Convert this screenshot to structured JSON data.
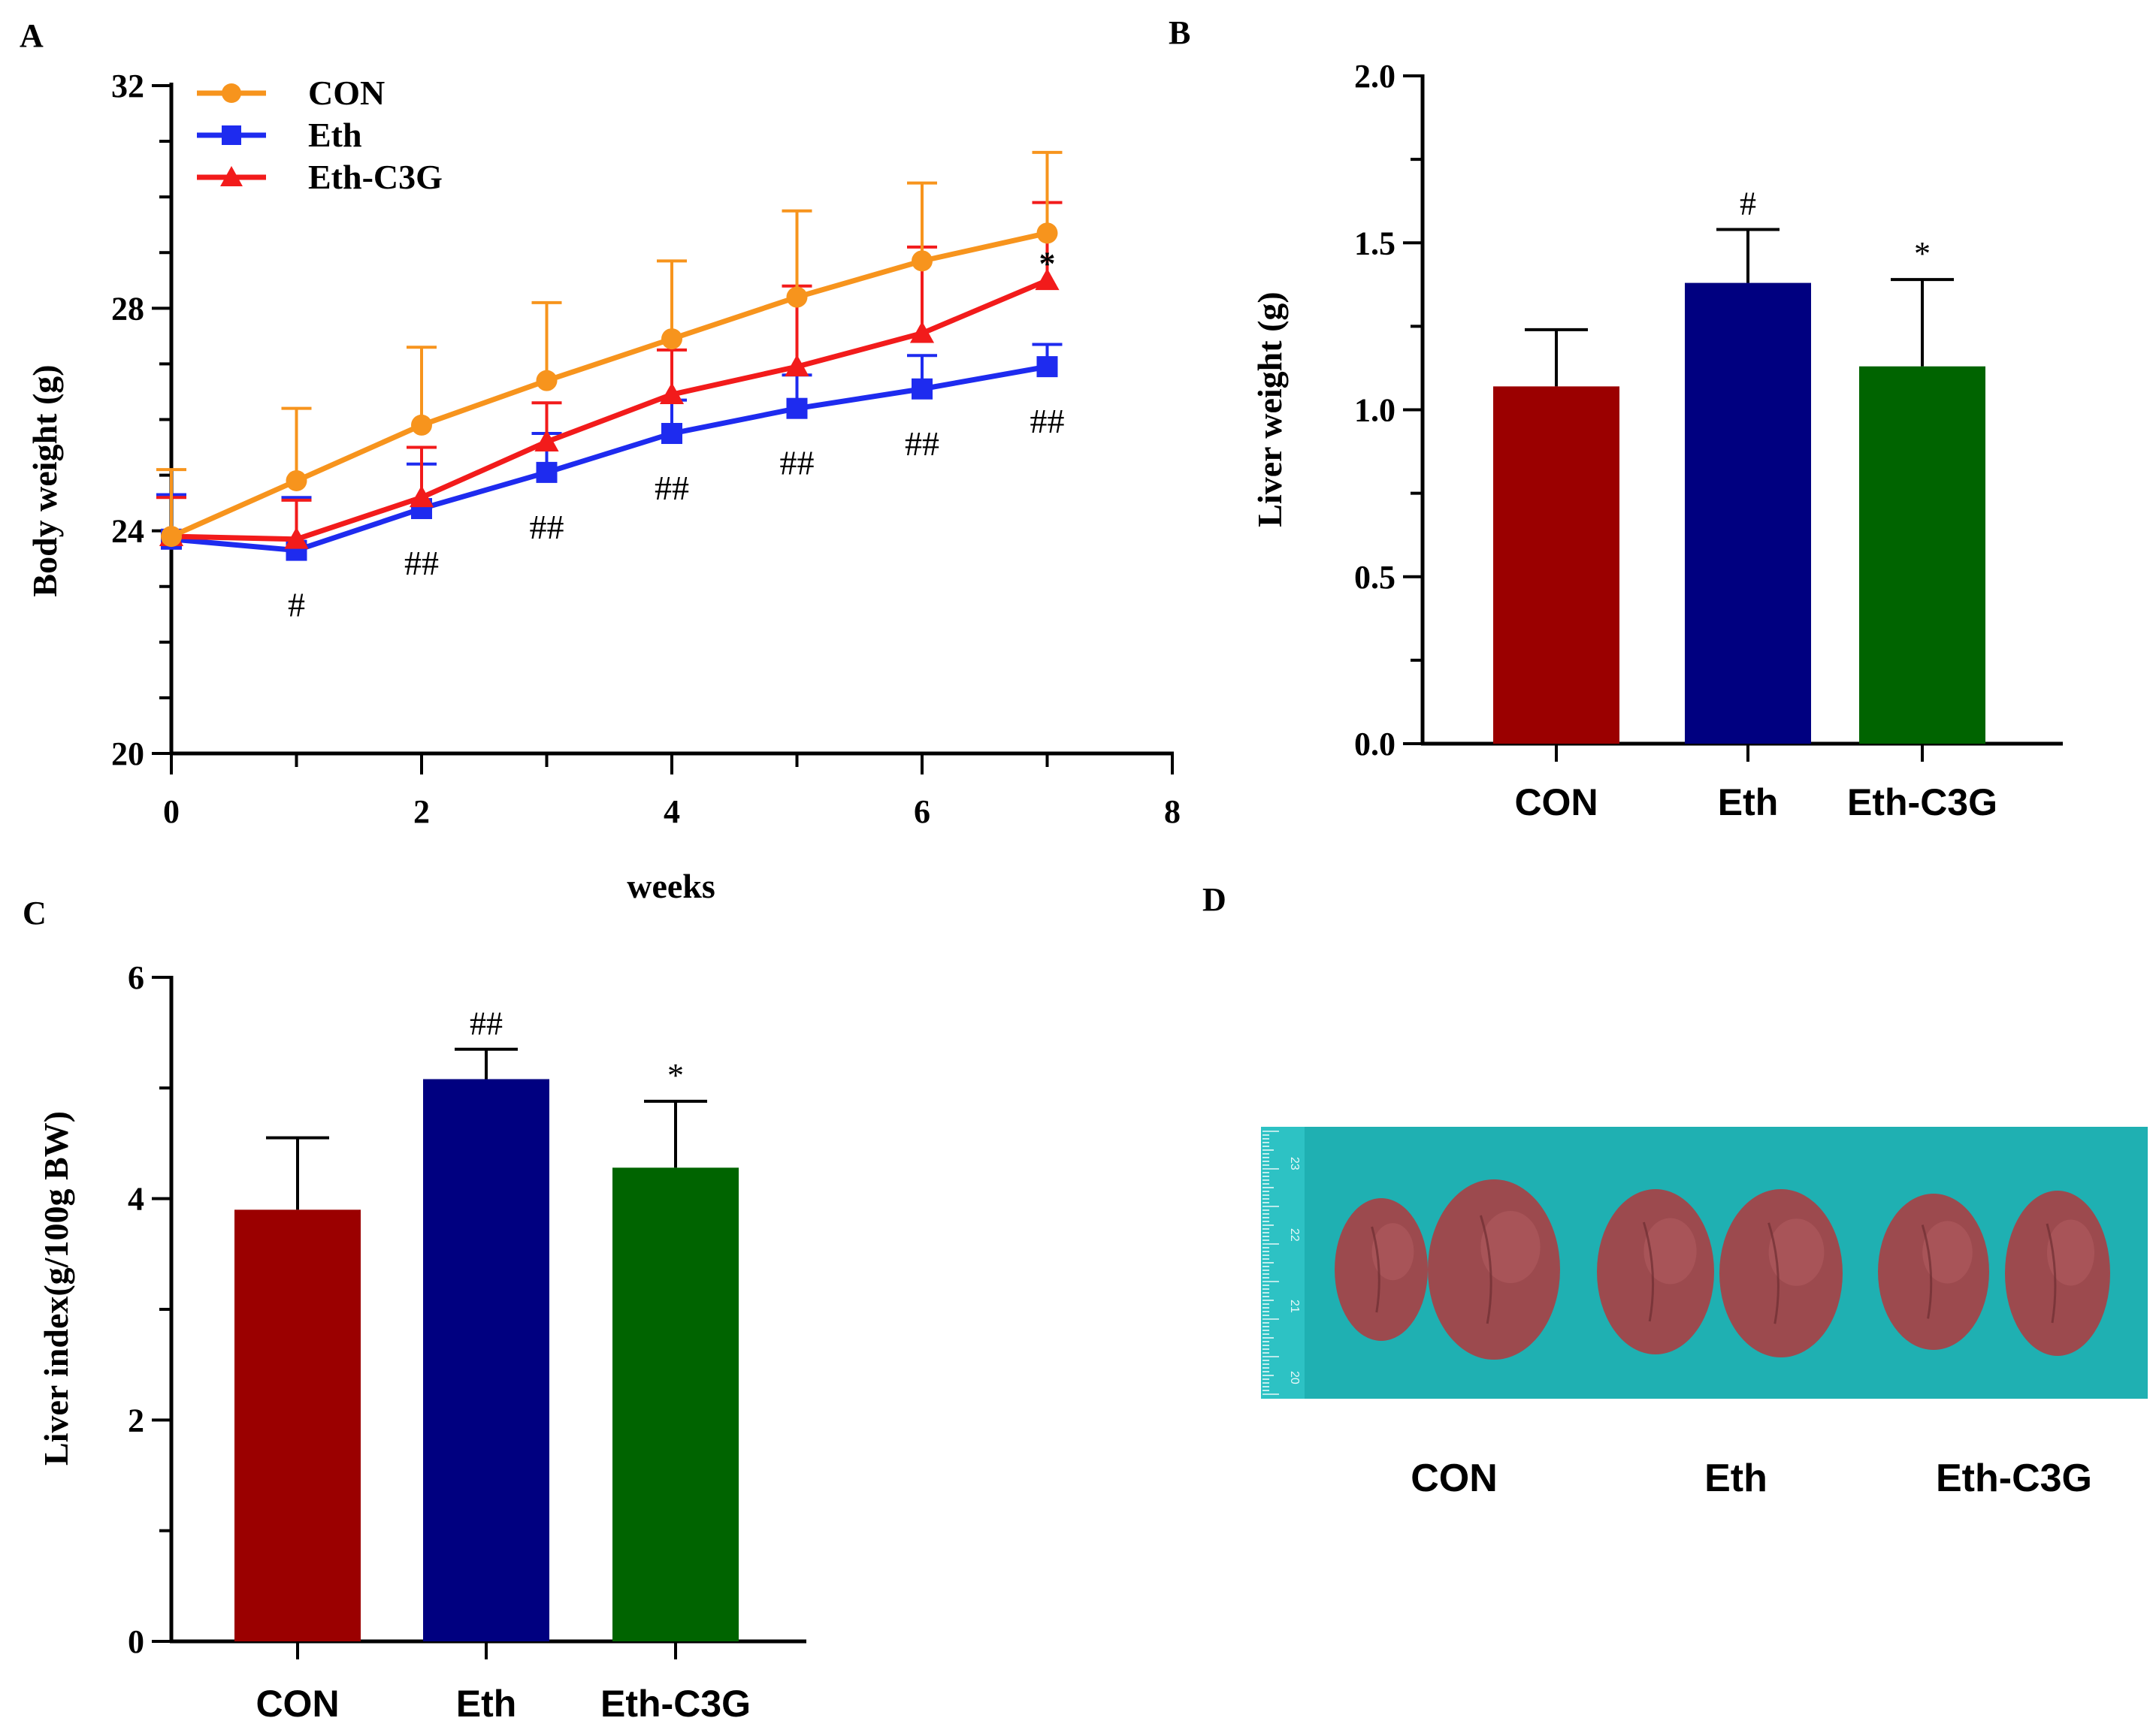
{
  "chart_data": [
    {
      "panel": "A",
      "type": "line",
      "ylabel": "Body weight (g)",
      "xlabel": "weeks",
      "xlim": [
        0,
        8
      ],
      "ylim": [
        20,
        32
      ],
      "xticks": [
        "0",
        "2",
        "4",
        "6",
        "8"
      ],
      "yticks": [
        "20",
        "24",
        "28",
        "32"
      ],
      "x": [
        0,
        1,
        2,
        3,
        4,
        5,
        6,
        7
      ],
      "series": [
        {
          "name": "CON",
          "color": "#F7941D",
          "marker": "circle",
          "values": [
            23.9,
            24.9,
            25.9,
            26.7,
            27.45,
            28.2,
            28.85,
            29.35
          ],
          "errors": [
            1.2,
            1.3,
            1.4,
            1.4,
            1.4,
            1.55,
            1.4,
            1.45
          ]
        },
        {
          "name": "Eth",
          "color": "#1E2BEF",
          "marker": "square",
          "values": [
            23.85,
            23.65,
            24.4,
            25.05,
            25.75,
            26.2,
            26.55,
            26.95
          ],
          "errors": [
            0.8,
            0.95,
            0.8,
            0.7,
            0.6,
            0.6,
            0.6,
            0.4
          ]
        },
        {
          "name": "Eth-C3G",
          "color": "#F21B1B",
          "marker": "triangle",
          "values": [
            23.9,
            23.85,
            24.6,
            25.6,
            26.45,
            26.95,
            27.55,
            28.5
          ],
          "errors": [
            0.7,
            0.7,
            0.9,
            0.7,
            0.8,
            1.45,
            1.55,
            1.4
          ]
        }
      ],
      "annotations": [
        {
          "x": 1,
          "text": "#"
        },
        {
          "x": 2,
          "text": "##"
        },
        {
          "x": 3,
          "text": "##"
        },
        {
          "x": 4,
          "text": "##"
        },
        {
          "x": 5,
          "text": "##"
        },
        {
          "x": 6,
          "text": "##"
        },
        {
          "x": 7,
          "text": "##"
        },
        {
          "x": 7,
          "text": "*"
        }
      ]
    },
    {
      "panel": "B",
      "type": "bar",
      "ylabel": "Liver weight (g)",
      "ylim": [
        0,
        2.0
      ],
      "yticks": [
        "0.0",
        "0.5",
        "1.0",
        "1.5",
        "2.0"
      ],
      "categories": [
        "CON",
        "Eth",
        "Eth-C3G"
      ],
      "values": [
        1.07,
        1.38,
        1.13
      ],
      "errors": [
        0.17,
        0.16,
        0.26
      ],
      "colors": [
        "#9B0000",
        "#000080",
        "#006400"
      ],
      "annotations": [
        "",
        "#",
        "*"
      ]
    },
    {
      "panel": "C",
      "type": "bar",
      "ylabel": "Liver index(g/100g BW)",
      "ylim": [
        0,
        6
      ],
      "yticks": [
        "0",
        "2",
        "4",
        "6"
      ],
      "categories": [
        "CON",
        "Eth",
        "Eth-C3G"
      ],
      "values": [
        3.9,
        5.08,
        4.28
      ],
      "errors": [
        0.65,
        0.27,
        0.6
      ],
      "colors": [
        "#9B0000",
        "#000080",
        "#006400"
      ],
      "annotations": [
        "",
        "##",
        "*"
      ]
    }
  ],
  "panel_d": {
    "label": "D",
    "photo_labels": [
      "CON",
      "Eth",
      "Eth-C3G"
    ],
    "ruler_ticks": [
      "23",
      "22",
      "21",
      "20"
    ],
    "background_color": "#1FB0B2",
    "liver_color": "#9C4A4E"
  }
}
